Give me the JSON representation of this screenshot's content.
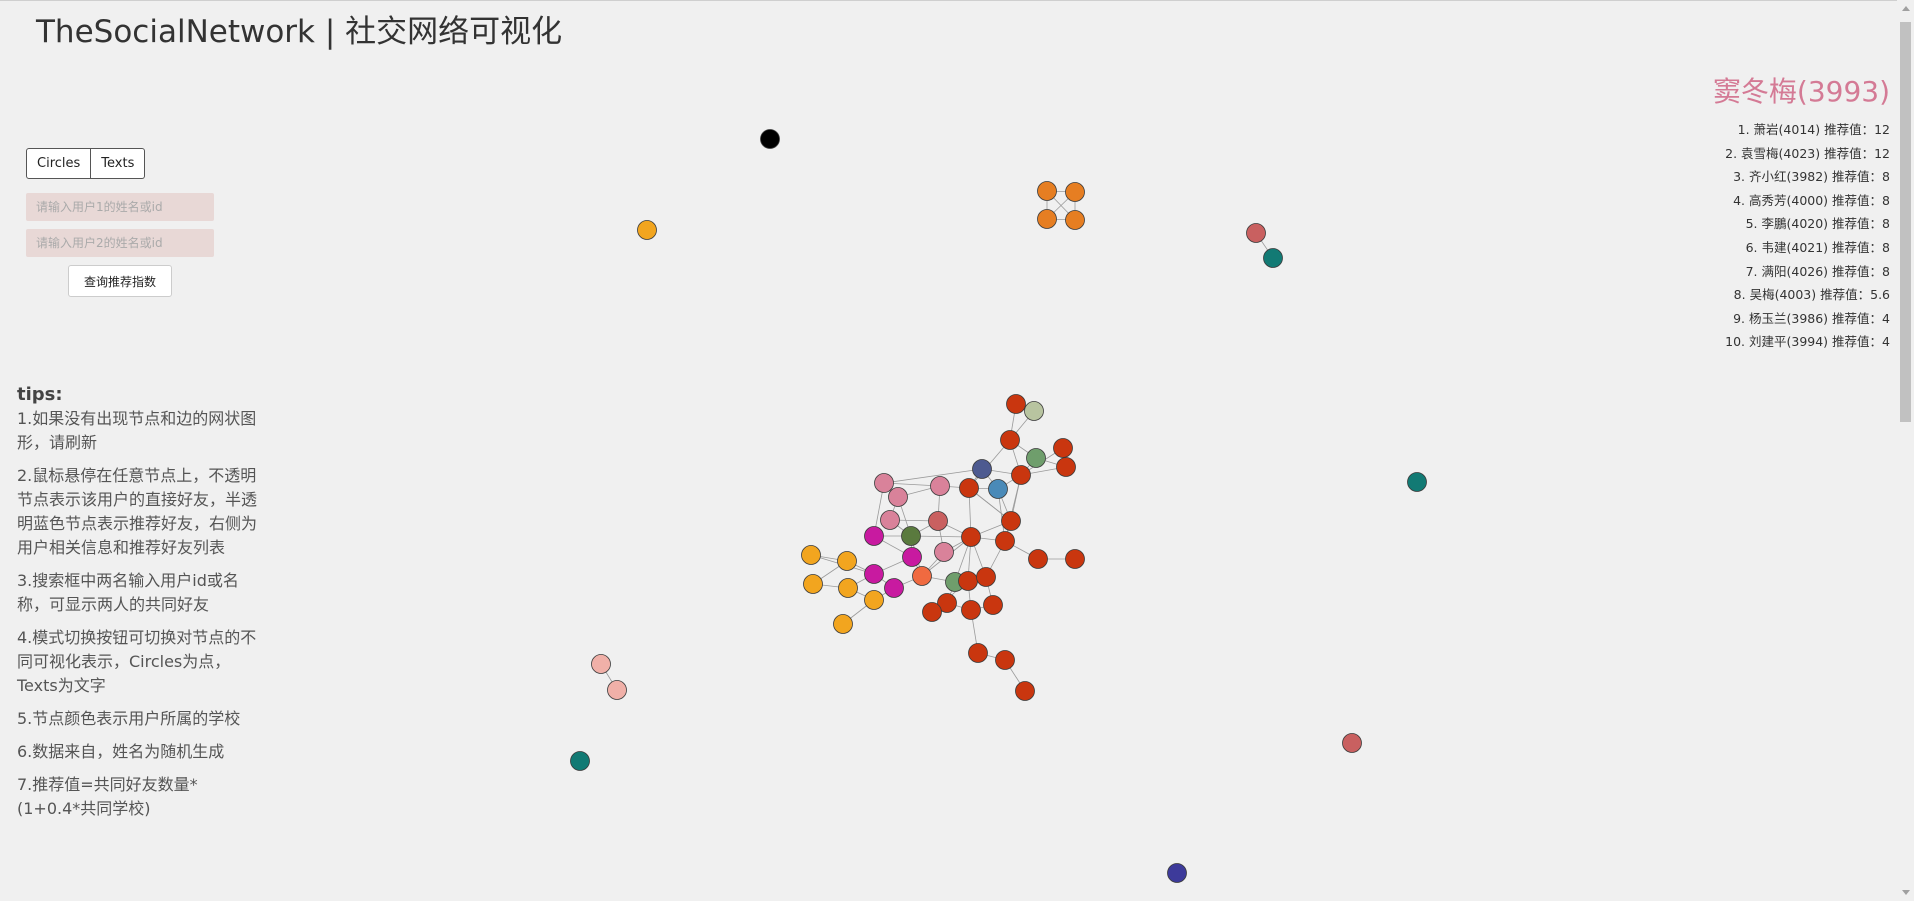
{
  "header": {
    "title": "TheSocialNetwork | 社交网络可视化"
  },
  "mode_switch": {
    "circles_label": "Circles",
    "texts_label": "Texts"
  },
  "search": {
    "user1_placeholder": "请输入用户1的姓名或id",
    "user2_placeholder": "请输入用户2的姓名或id",
    "query_label": "查询推荐指数"
  },
  "tips": {
    "heading": "tips:",
    "items": [
      "1.如果没有出现节点和边的网状图形，请刷新",
      "2.鼠标悬停在任意节点上，不透明节点表示该用户的直接好友，半透明蓝色节点表示推荐好友，右侧为用户相关信息和推荐好友列表",
      "3.搜索框中两名输入用户id或名称，可显示两人的共同好友",
      "4.模式切换按钮可切换对节点的不同可视化表示，Circles为点，Texts为文字",
      "5.节点颜色表示用户所属的学校",
      "6.数据来自，姓名为随机生成",
      "7.推荐值=共同好友数量*(1+0.4*共同学校)"
    ]
  },
  "profile": {
    "name": "窦冬梅(3993)",
    "name_color": "#d47a95",
    "recommendations": [
      "1. 萧岩(4014) 推荐值：12",
      "2. 袁雪梅(4023) 推荐值：12",
      "3. 齐小红(3982) 推荐值：8",
      "4. 高秀芳(4000) 推荐值：8",
      "5. 李鵬(4020) 推荐值：8",
      "6. 韦建(4021) 推荐值：8",
      "7. 满阳(4026) 推荐值：8",
      "8. 吴梅(4003) 推荐值：5.6",
      "9. 杨玉兰(3986) 推荐值：4",
      "10. 刘建平(3994) 推荐值：4"
    ]
  },
  "school_colors": {
    "red": "#c9360f",
    "orange": "#e67e22",
    "yellow": "#f2a51f",
    "magenta": "#c81aa0",
    "pink": "#d9829a",
    "rose": "#c96060",
    "green": "#6f9e6c",
    "olive": "#5a7a3e",
    "sage": "#b8c4a0",
    "blue": "#4a8ab8",
    "navy": "#4d5a90",
    "teal": "#127a74",
    "indigo": "#3d3a9a",
    "salmon": "#f0b0a8",
    "black": "#000000",
    "coral": "#f06a40"
  }
}
